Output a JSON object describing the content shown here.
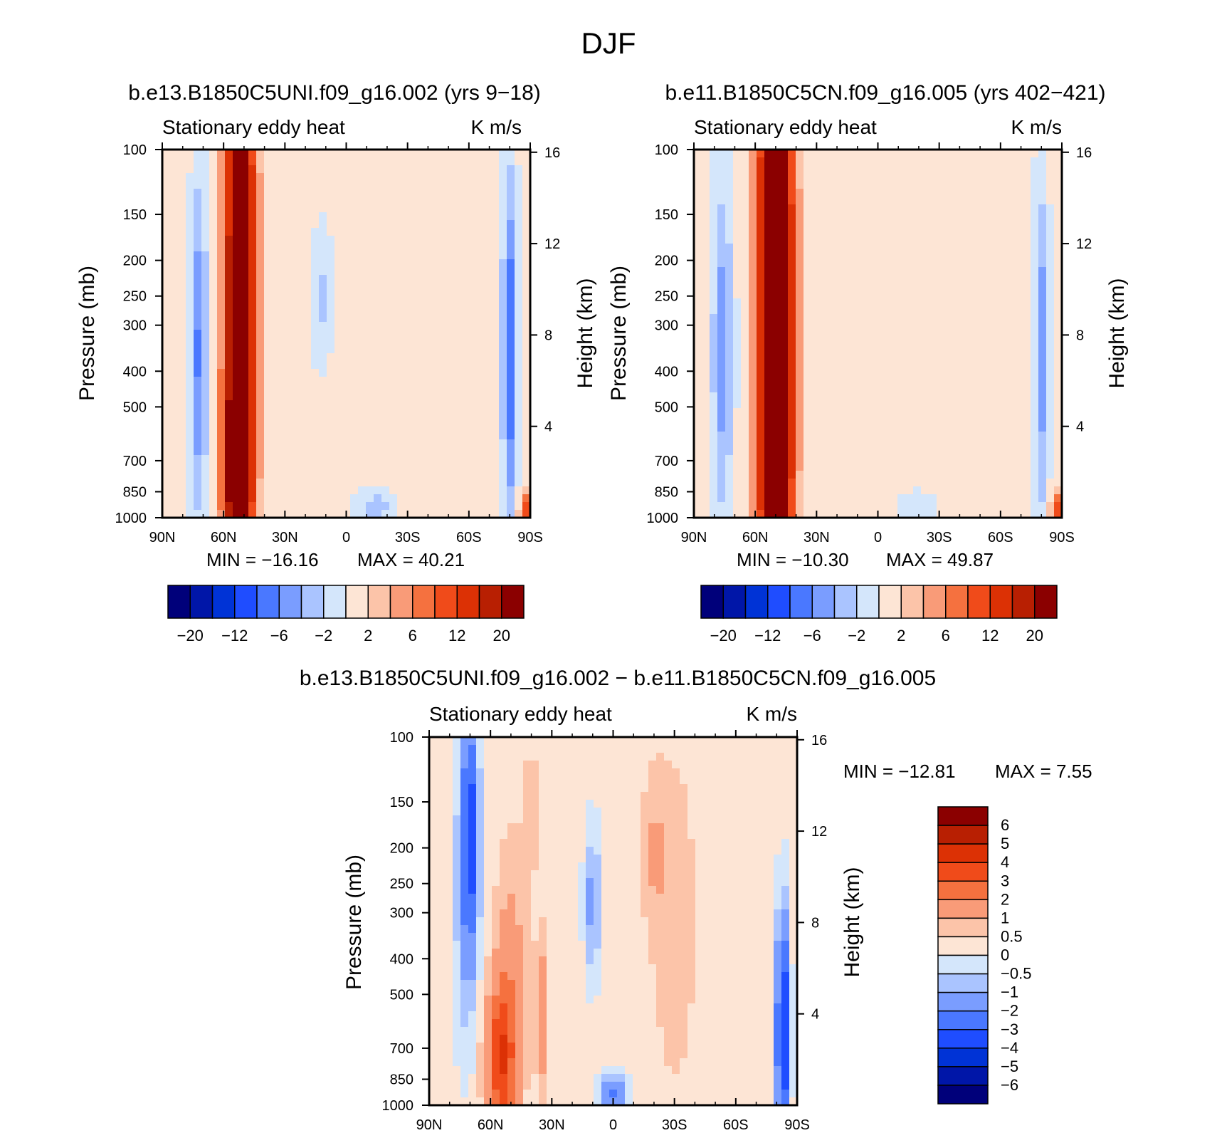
{
  "figure": {
    "title": "DJF",
    "diff_title": "b.e13.B1850C5UNI.f09_g16.002 − b.e11.B1850C5CN.f09_g16.005"
  },
  "colors": {
    "main_levels": [
      "#00007a",
      "#0016a8",
      "#0033d6",
      "#1f4dff",
      "#4a78ff",
      "#7a9dff",
      "#aac4ff",
      "#d4e6fb",
      "#fde5d5",
      "#fcc4a9",
      "#f99b78",
      "#f5713f",
      "#f04b1a",
      "#dc3105",
      "#b81f02",
      "#8b0000"
    ],
    "diff_levels": [
      "#00007a",
      "#0016a8",
      "#0033d6",
      "#1f4dff",
      "#4a78ff",
      "#7a9dff",
      "#aac4ff",
      "#d4e6fb",
      "#fde5d5",
      "#fcc4a9",
      "#f99b78",
      "#f5713f",
      "#f04b1a",
      "#dc3105",
      "#b81f02",
      "#8b0000"
    ]
  },
  "chart_data": [
    {
      "type": "heatmap",
      "panel": "left",
      "title": "b.e13.B1850C5UNI.f09_g16.002 (yrs 9−18)",
      "left_string": "Stationary eddy heat",
      "right_string": "K m/s",
      "ylabel": "Pressure (mb)",
      "y2label": "Height (km)",
      "x_ticks": [
        "90N",
        "60N",
        "30N",
        "0",
        "30S",
        "60S",
        "90S"
      ],
      "y_ticks": [
        "100",
        "150",
        "200",
        "250",
        "300",
        "400",
        "500",
        "700",
        "850",
        "1000"
      ],
      "y2_ticks": [
        "16",
        "12",
        "8",
        "4"
      ],
      "min_label": "MIN = −16.16",
      "max_label": "MAX = 40.21",
      "min": -16.16,
      "max": 40.21,
      "colorbar_labels": [
        "−20",
        "−12",
        "−6",
        "−2",
        "2",
        "6",
        "12",
        "20"
      ],
      "features": [
        {
          "lat": 52,
          "lev": 0.48,
          "sx": 7,
          "sy": 0.95,
          "a": 30
        },
        {
          "lat": 55,
          "lev": 0.85,
          "sx": 5,
          "sy": 0.18,
          "a": 12
        },
        {
          "lat": 72,
          "lev": 0.55,
          "sx": 4,
          "sy": 0.45,
          "a": -7
        },
        {
          "lat": 12,
          "lev": 0.4,
          "sx": 5,
          "sy": 0.18,
          "a": -3
        },
        {
          "lat": -20,
          "lev": 0.55,
          "sx": 14,
          "sy": 0.5,
          "a": 1.3
        },
        {
          "lat": -15,
          "lev": 0.97,
          "sx": 10,
          "sy": 0.05,
          "a": -4
        },
        {
          "lat": -80,
          "lev": 0.55,
          "sx": 3.5,
          "sy": 0.45,
          "a": -9
        },
        {
          "lat": -87,
          "lev": 0.98,
          "sx": 2,
          "sy": 0.05,
          "a": 15
        }
      ]
    },
    {
      "type": "heatmap",
      "panel": "right",
      "title": "b.e11.B1850C5CN.f09_g16.005 (yrs 402−421)",
      "left_string": "Stationary eddy heat",
      "right_string": "K m/s",
      "ylabel": "Pressure (mb)",
      "y2label": "Height (km)",
      "x_ticks": [
        "90N",
        "60N",
        "30N",
        "0",
        "30S",
        "60S",
        "90S"
      ],
      "y_ticks": [
        "100",
        "150",
        "200",
        "250",
        "300",
        "400",
        "500",
        "700",
        "850",
        "1000"
      ],
      "y2_ticks": [
        "16",
        "12",
        "8",
        "4"
      ],
      "min_label": "MIN = −10.30",
      "max_label": "MAX = 49.87",
      "min": -10.3,
      "max": 49.87,
      "colorbar_labels": [
        "−20",
        "−12",
        "−6",
        "−2",
        "2",
        "6",
        "12",
        "20"
      ],
      "features": [
        {
          "lat": 50,
          "lev": 0.48,
          "sx": 8,
          "sy": 0.95,
          "a": 34
        },
        {
          "lat": 50,
          "lev": 0.85,
          "sx": 5,
          "sy": 0.18,
          "a": 10
        },
        {
          "lat": 76,
          "lev": 0.55,
          "sx": 5,
          "sy": 0.45,
          "a": -6
        },
        {
          "lat": -15,
          "lev": 0.55,
          "sx": 15,
          "sy": 0.5,
          "a": 1.3
        },
        {
          "lat": -18,
          "lev": 0.97,
          "sx": 10,
          "sy": 0.05,
          "a": -3
        },
        {
          "lat": -80,
          "lev": 0.55,
          "sx": 3.5,
          "sy": 0.45,
          "a": -6
        },
        {
          "lat": -87,
          "lev": 0.98,
          "sx": 2,
          "sy": 0.05,
          "a": 15
        }
      ]
    },
    {
      "type": "heatmap",
      "panel": "diff",
      "title": "b.e13.B1850C5UNI.f09_g16.002 − b.e11.B1850C5CN.f09_g16.005",
      "left_string": "Stationary eddy heat",
      "right_string": "K m/s",
      "ylabel": "Pressure (mb)",
      "y2label": "Height (km)",
      "x_ticks": [
        "90N",
        "60N",
        "30N",
        "0",
        "30S",
        "60S",
        "90S"
      ],
      "y_ticks": [
        "100",
        "150",
        "200",
        "250",
        "300",
        "400",
        "500",
        "700",
        "850",
        "1000"
      ],
      "y2_ticks": [
        "16",
        "12",
        "8",
        "4"
      ],
      "min_label": "MIN = −12.81",
      "max_label": "MAX = 7.55",
      "min": -12.81,
      "max": 7.55,
      "colorbar_labels": [
        "6",
        "5",
        "4",
        "3",
        "2",
        "1",
        "0.5",
        "0",
        "−0.5",
        "−1",
        "−2",
        "−3",
        "−4",
        "−5",
        "−6"
      ],
      "features": [
        {
          "lat": 70,
          "lev": 0.25,
          "sx": 4,
          "sy": 0.3,
          "a": -3.5
        },
        {
          "lat": 72,
          "lev": 0.45,
          "sx": 6,
          "sy": 0.4,
          "a": -1.2
        },
        {
          "lat": 55,
          "lev": 0.88,
          "sx": 7,
          "sy": 0.2,
          "a": 3.5
        },
        {
          "lat": 50,
          "lev": 0.65,
          "sx": 8,
          "sy": 0.35,
          "a": 1.2
        },
        {
          "lat": 35,
          "lev": 0.75,
          "sx": 3,
          "sy": 0.2,
          "a": 1.5
        },
        {
          "lat": 40,
          "lev": 0.2,
          "sx": 4,
          "sy": 0.15,
          "a": 0.8
        },
        {
          "lat": 10,
          "lev": 0.45,
          "sx": 4,
          "sy": 0.2,
          "a": -1.5
        },
        {
          "lat": 0,
          "lev": 0.97,
          "sx": 6,
          "sy": 0.05,
          "a": -2.5
        },
        {
          "lat": -20,
          "lev": 0.3,
          "sx": 6,
          "sy": 0.2,
          "a": 0.7
        },
        {
          "lat": -30,
          "lev": 0.5,
          "sx": 12,
          "sy": 0.5,
          "a": 0.6
        },
        {
          "lat": -83,
          "lev": 0.8,
          "sx": 3,
          "sy": 0.3,
          "a": -5
        }
      ]
    }
  ]
}
